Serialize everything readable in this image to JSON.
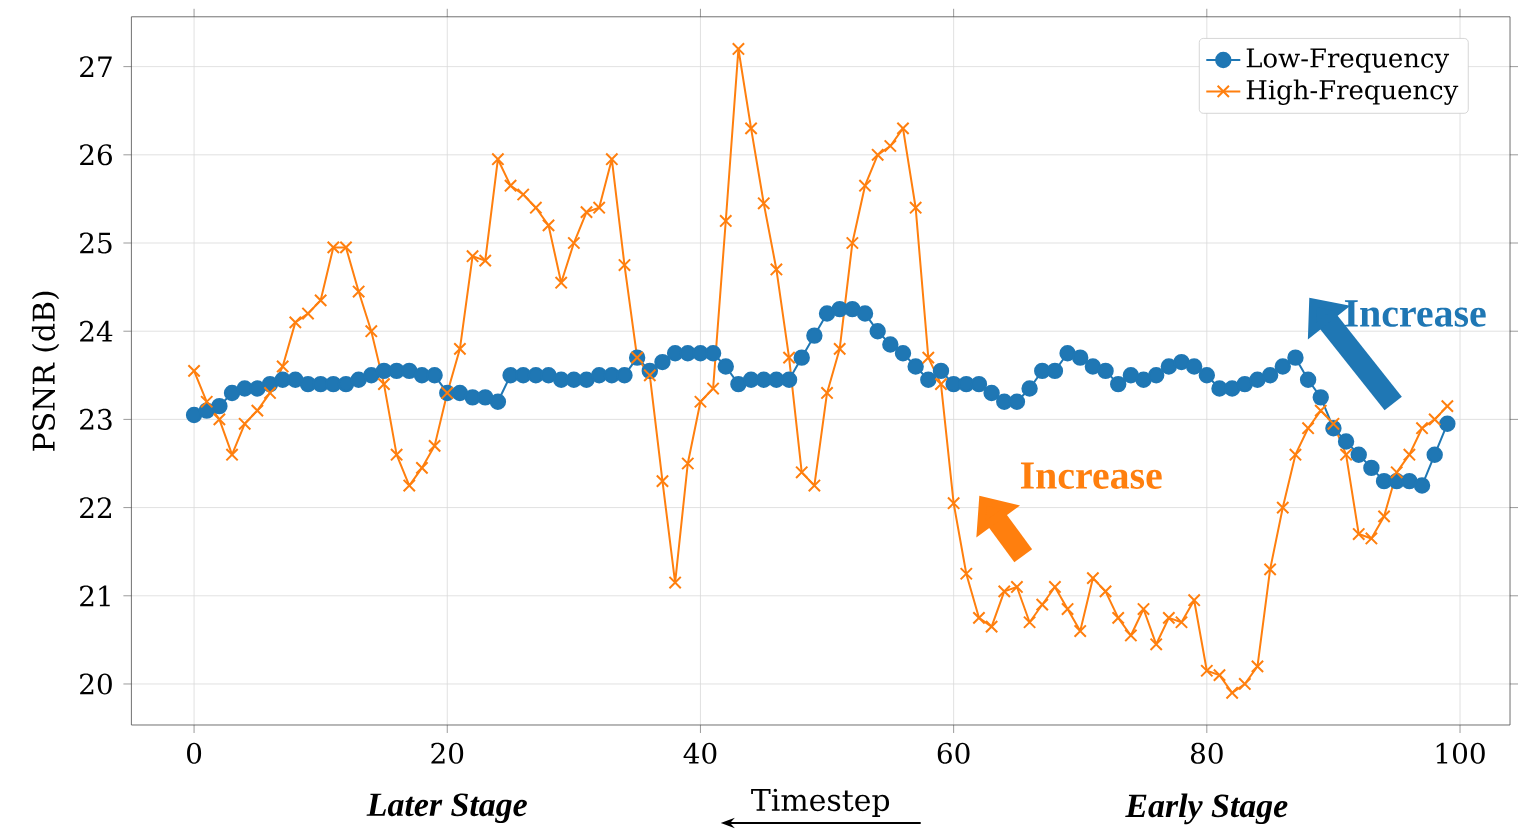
{
  "chart_data": {
    "type": "line",
    "xlabel": "Timestep",
    "ylabel": "PSNR (dB)",
    "x": [
      0,
      1,
      2,
      3,
      4,
      5,
      6,
      7,
      8,
      9,
      10,
      11,
      12,
      13,
      14,
      15,
      16,
      17,
      18,
      19,
      20,
      21,
      22,
      23,
      24,
      25,
      26,
      27,
      28,
      29,
      30,
      31,
      32,
      33,
      34,
      35,
      36,
      37,
      38,
      39,
      40,
      41,
      42,
      43,
      44,
      45,
      46,
      47,
      48,
      49,
      50,
      51,
      52,
      53,
      54,
      55,
      56,
      57,
      58,
      59,
      60,
      61,
      62,
      63,
      64,
      65,
      66,
      67,
      68,
      69,
      70,
      71,
      72,
      73,
      74,
      75,
      76,
      77,
      78,
      79,
      80,
      81,
      82,
      83,
      84,
      85,
      86,
      87,
      88,
      89,
      90,
      91,
      92,
      93,
      94,
      95,
      96,
      97,
      98,
      99
    ],
    "series": [
      {
        "name": "Low-Frequency",
        "color": "#1f77b4",
        "marker": "circle",
        "values": [
          23.05,
          23.1,
          23.15,
          23.3,
          23.35,
          23.35,
          23.4,
          23.45,
          23.45,
          23.4,
          23.4,
          23.4,
          23.4,
          23.45,
          23.5,
          23.55,
          23.55,
          23.55,
          23.5,
          23.5,
          23.3,
          23.3,
          23.25,
          23.25,
          23.2,
          23.5,
          23.5,
          23.5,
          23.5,
          23.45,
          23.45,
          23.45,
          23.5,
          23.5,
          23.5,
          23.7,
          23.55,
          23.65,
          23.75,
          23.75,
          23.75,
          23.75,
          23.6,
          23.4,
          23.45,
          23.45,
          23.45,
          23.45,
          23.7,
          23.95,
          24.2,
          24.25,
          24.25,
          24.2,
          24.0,
          23.85,
          23.75,
          23.6,
          23.45,
          23.55,
          23.4,
          23.4,
          23.4,
          23.3,
          23.2,
          23.2,
          23.35,
          23.55,
          23.55,
          23.75,
          23.7,
          23.6,
          23.55,
          23.4,
          23.5,
          23.45,
          23.5,
          23.6,
          23.65,
          23.6,
          23.5,
          23.35,
          23.35,
          23.4,
          23.45,
          23.5,
          23.6,
          23.7,
          23.45,
          23.25,
          22.9,
          22.75,
          22.6,
          22.45,
          22.3,
          22.3,
          22.3,
          22.25,
          22.6,
          22.95
        ]
      },
      {
        "name": "High-Frequency",
        "color": "#ff7f0e",
        "marker": "cross",
        "values": [
          23.55,
          23.2,
          23.0,
          22.6,
          22.95,
          23.1,
          23.3,
          23.6,
          24.1,
          24.2,
          24.35,
          24.95,
          24.95,
          24.45,
          24.0,
          23.4,
          22.6,
          22.25,
          22.45,
          22.7,
          23.3,
          23.8,
          24.85,
          24.8,
          25.95,
          25.65,
          25.55,
          25.4,
          25.2,
          24.55,
          25.0,
          25.35,
          25.4,
          25.95,
          24.75,
          23.7,
          23.5,
          22.3,
          21.15,
          22.5,
          23.2,
          23.35,
          25.25,
          27.2,
          26.3,
          25.45,
          24.7,
          23.7,
          22.4,
          22.25,
          23.3,
          23.8,
          25.0,
          25.65,
          26.0,
          26.1,
          26.3,
          25.4,
          23.7,
          23.4,
          22.05,
          21.25,
          20.75,
          20.65,
          21.05,
          21.1,
          20.7,
          20.9,
          21.1,
          20.85,
          20.6,
          21.2,
          21.05,
          20.75,
          20.55,
          20.85,
          20.45,
          20.75,
          20.7,
          20.95,
          20.15,
          20.1,
          19.9,
          20.0,
          20.2,
          21.3,
          22.0,
          22.6,
          22.9,
          23.1,
          22.95,
          22.6,
          21.7,
          21.65,
          21.9,
          22.4,
          22.6,
          22.9,
          23.0,
          23.15
        ]
      }
    ],
    "xlim": [
      -4.95,
      103.95
    ],
    "ylim": [
      19.535,
      27.565
    ],
    "xticks": [
      0,
      20,
      40,
      60,
      80,
      100
    ],
    "yticks": [
      20,
      21,
      22,
      23,
      24,
      25,
      26,
      27
    ],
    "grid": true,
    "legend": "top right",
    "line_style": "solid",
    "annotations": [
      "Increase",
      "Increase",
      "Later Stage",
      "Early Stage"
    ]
  }
}
